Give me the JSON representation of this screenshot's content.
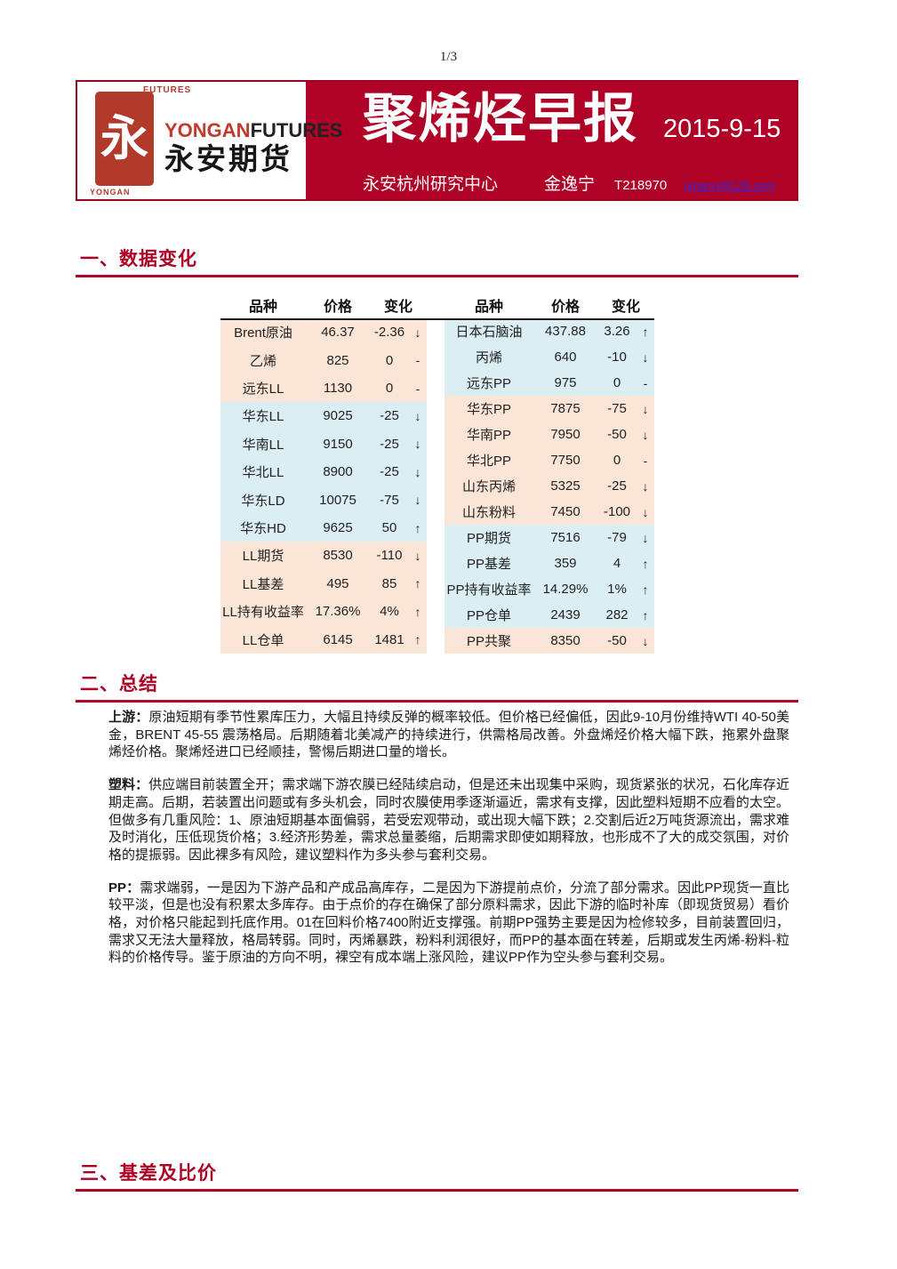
{
  "page": {
    "page_number": "1/3"
  },
  "header": {
    "logo": {
      "seal_char": "永",
      "seal_top": "FUTURES",
      "seal_bottom": "YONGAN",
      "brand_red": "YONGAN",
      "brand_black": "FUTURES",
      "brand_cn": "永安期货"
    },
    "title": "聚烯烃早报",
    "date": "2015-9-15",
    "center": "永安杭州研究中心",
    "author": "金逸宁",
    "author_id": "T218970",
    "email": "jynann@126.com"
  },
  "sections": {
    "data_changes": {
      "title": "一、数据变化"
    },
    "summary": {
      "title": "二、总结"
    },
    "basis": {
      "title": "三、基差及比价"
    }
  },
  "tables": {
    "headers": [
      "品种",
      "价格",
      "变化"
    ],
    "left": {
      "rows": [
        {
          "name": "Brent原油",
          "price": "46.37",
          "change": "-2.36",
          "arrow": "↓",
          "bg": "peach"
        },
        {
          "name": "乙烯",
          "price": "825",
          "change": "0",
          "arrow": "-",
          "bg": "peach"
        },
        {
          "name": "远东LL",
          "price": "1130",
          "change": "0",
          "arrow": "-",
          "bg": "peach"
        },
        {
          "name": "华东LL",
          "price": "9025",
          "change": "-25",
          "arrow": "↓",
          "bg": "blue"
        },
        {
          "name": "华南LL",
          "price": "9150",
          "change": "-25",
          "arrow": "↓",
          "bg": "blue"
        },
        {
          "name": "华北LL",
          "price": "8900",
          "change": "-25",
          "arrow": "↓",
          "bg": "blue"
        },
        {
          "name": "华东LD",
          "price": "10075",
          "change": "-75",
          "arrow": "↓",
          "bg": "blue"
        },
        {
          "name": "华东HD",
          "price": "9625",
          "change": "50",
          "arrow": "↑",
          "bg": "blue"
        },
        {
          "name": "LL期货",
          "price": "8530",
          "change": "-110",
          "arrow": "↓",
          "bg": "peach"
        },
        {
          "name": "LL基差",
          "price": "495",
          "change": "85",
          "arrow": "↑",
          "bg": "peach"
        },
        {
          "name": "LL持有收益率",
          "price": "17.36%",
          "change": "4%",
          "arrow": "↑",
          "bg": "peach"
        },
        {
          "name": "LL仓单",
          "price": "6145",
          "change": "1481",
          "arrow": "↑",
          "bg": "peach"
        }
      ]
    },
    "right": {
      "rows": [
        {
          "name": "日本石脑油",
          "price": "437.88",
          "change": "3.26",
          "arrow": "↑",
          "bg": "blue"
        },
        {
          "name": "丙烯",
          "price": "640",
          "change": "-10",
          "arrow": "↓",
          "bg": "blue"
        },
        {
          "name": "远东PP",
          "price": "975",
          "change": "0",
          "arrow": "-",
          "bg": "blue"
        },
        {
          "name": "华东PP",
          "price": "7875",
          "change": "-75",
          "arrow": "↓",
          "bg": "peach"
        },
        {
          "name": "华南PP",
          "price": "7950",
          "change": "-50",
          "arrow": "↓",
          "bg": "peach"
        },
        {
          "name": "华北PP",
          "price": "7750",
          "change": "0",
          "arrow": "-",
          "bg": "peach"
        },
        {
          "name": "山东丙烯",
          "price": "5325",
          "change": "-25",
          "arrow": "↓",
          "bg": "peach"
        },
        {
          "name": "山东粉料",
          "price": "7450",
          "change": "-100",
          "arrow": "↓",
          "bg": "peach"
        },
        {
          "name": "PP期货",
          "price": "7516",
          "change": "-79",
          "arrow": "↓",
          "bg": "blue"
        },
        {
          "name": "PP基差",
          "price": "359",
          "change": "4",
          "arrow": "↑",
          "bg": "blue"
        },
        {
          "name": "PP持有收益率",
          "price": "14.29%",
          "change": "1%",
          "arrow": "↑",
          "bg": "blue"
        },
        {
          "name": "PP仓单",
          "price": "2439",
          "change": "282",
          "arrow": "↑",
          "bg": "blue"
        },
        {
          "name": "PP共聚",
          "price": "8350",
          "change": "-50",
          "arrow": "↓",
          "bg": "peach"
        }
      ]
    }
  },
  "summary": {
    "paragraphs": [
      {
        "label": "上游：",
        "text": "原油短期有季节性累库压力，大幅且持续反弹的概率较低。但价格已经偏低，因此9-10月份维持WTI 40-50美金，BRENT 45-55 震荡格局。后期随着北美减产的持续进行，供需格局改善。外盘烯烃价格大幅下跌，拖累外盘聚烯烃价格。聚烯烃进口已经顺挂，警惕后期进口量的增长。"
      },
      {
        "label": "塑料：",
        "text": "供应端目前装置全开；需求端下游农膜已经陆续启动，但是还未出现集中采购，现货紧张的状况，石化库存近期走高。后期，若装置出问题或有多头机会，同时农膜使用季逐渐逼近，需求有支撑，因此塑料短期不应看的太空。但做多有几重风险：1、原油短期基本面偏弱，若受宏观带动，或出现大幅下跌；2.交割后近2万吨货源流出，需求难及时消化，压低现货价格；3.经济形势差，需求总量萎缩，后期需求即使如期释放，也形成不了大的成交氛围，对价格的提振弱。因此裸多有风险，建议塑料作为多头参与套利交易。"
      },
      {
        "label": "PP：",
        "text": "需求端弱，一是因为下游产品和产成品高库存，二是因为下游提前点价，分流了部分需求。因此PP现货一直比较平淡，但是也没有积累太多库存。由于点价的存在确保了部分原料需求，因此下游的临时补库（即现货贸易）看价格，对价格只能起到托底作用。01在回料价格7400附近支撑强。前期PP强势主要是因为检修较多，目前装置回归，需求又无法大量释放，格局转弱。同时，丙烯暴跌，粉料利润很好，而PP的基本面在转差，后期或发生丙烯-粉料-粒料的价格传导。鉴于原油的方向不明，裸空有成本端上涨风险，建议PP作为空头参与套利交易。"
      }
    ]
  },
  "colors": {
    "banner_red": "#B00126",
    "banner_border": "#9A0120",
    "section_red": "#AE0124",
    "seal_red": "#B23A2B",
    "brand_red": "#C13A2D",
    "row_peach": "#FBE5D6",
    "row_blue": "#DAEEF3",
    "link_blue": "#2A2AE6",
    "table_rule": "#1B1B1B"
  }
}
